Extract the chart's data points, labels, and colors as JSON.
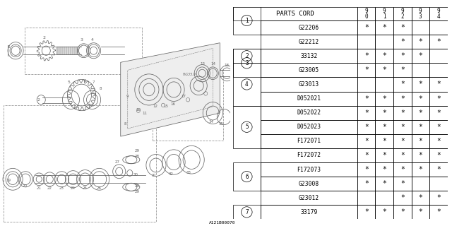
{
  "figure_id": "A121B00070",
  "bg_color": "#ffffff",
  "table": {
    "rows": [
      {
        "ref": "1",
        "parts": [
          "G22206",
          "G22212"
        ],
        "marks": [
          [
            "*",
            "*",
            "*",
            "",
            ""
          ],
          [
            "",
            "",
            "*",
            "*",
            "*"
          ]
        ]
      },
      {
        "ref": "2",
        "parts": [
          "33132"
        ],
        "marks": [
          [
            "*",
            "*",
            "*",
            "*",
            ""
          ]
        ]
      },
      {
        "ref": "3",
        "parts": [
          "G23005",
          "G23013"
        ],
        "marks": [
          [
            "*",
            "*",
            "*",
            "",
            ""
          ],
          [
            "",
            "",
            "*",
            "*",
            "*"
          ]
        ]
      },
      {
        "ref": "4",
        "parts": [
          "D052021",
          "D052022",
          "D052023"
        ],
        "marks": [
          [
            "*",
            "*",
            "*",
            "*",
            "*"
          ],
          [
            "*",
            "*",
            "*",
            "*",
            "*"
          ],
          [
            "*",
            "*",
            "*",
            "*",
            "*"
          ]
        ]
      },
      {
        "ref": "5",
        "parts": [
          "F172071",
          "F172072",
          "F172073"
        ],
        "marks": [
          [
            "*",
            "*",
            "*",
            "*",
            "*"
          ],
          [
            "*",
            "*",
            "*",
            "*",
            "*"
          ],
          [
            "*",
            "*",
            "*",
            "*",
            "*"
          ]
        ]
      },
      {
        "ref": "6",
        "parts": [
          "G23008",
          "G23012"
        ],
        "marks": [
          [
            "*",
            "*",
            "*",
            "",
            ""
          ],
          [
            "",
            "",
            "*",
            "*",
            "*"
          ]
        ]
      },
      {
        "ref": "7",
        "parts": [
          "33179"
        ],
        "marks": [
          [
            "*",
            "*",
            "*",
            "*",
            "*"
          ]
        ]
      }
    ]
  },
  "year_labels": [
    "9\n0",
    "9\n1",
    "9\n2",
    "9\n3",
    "9\n4"
  ]
}
